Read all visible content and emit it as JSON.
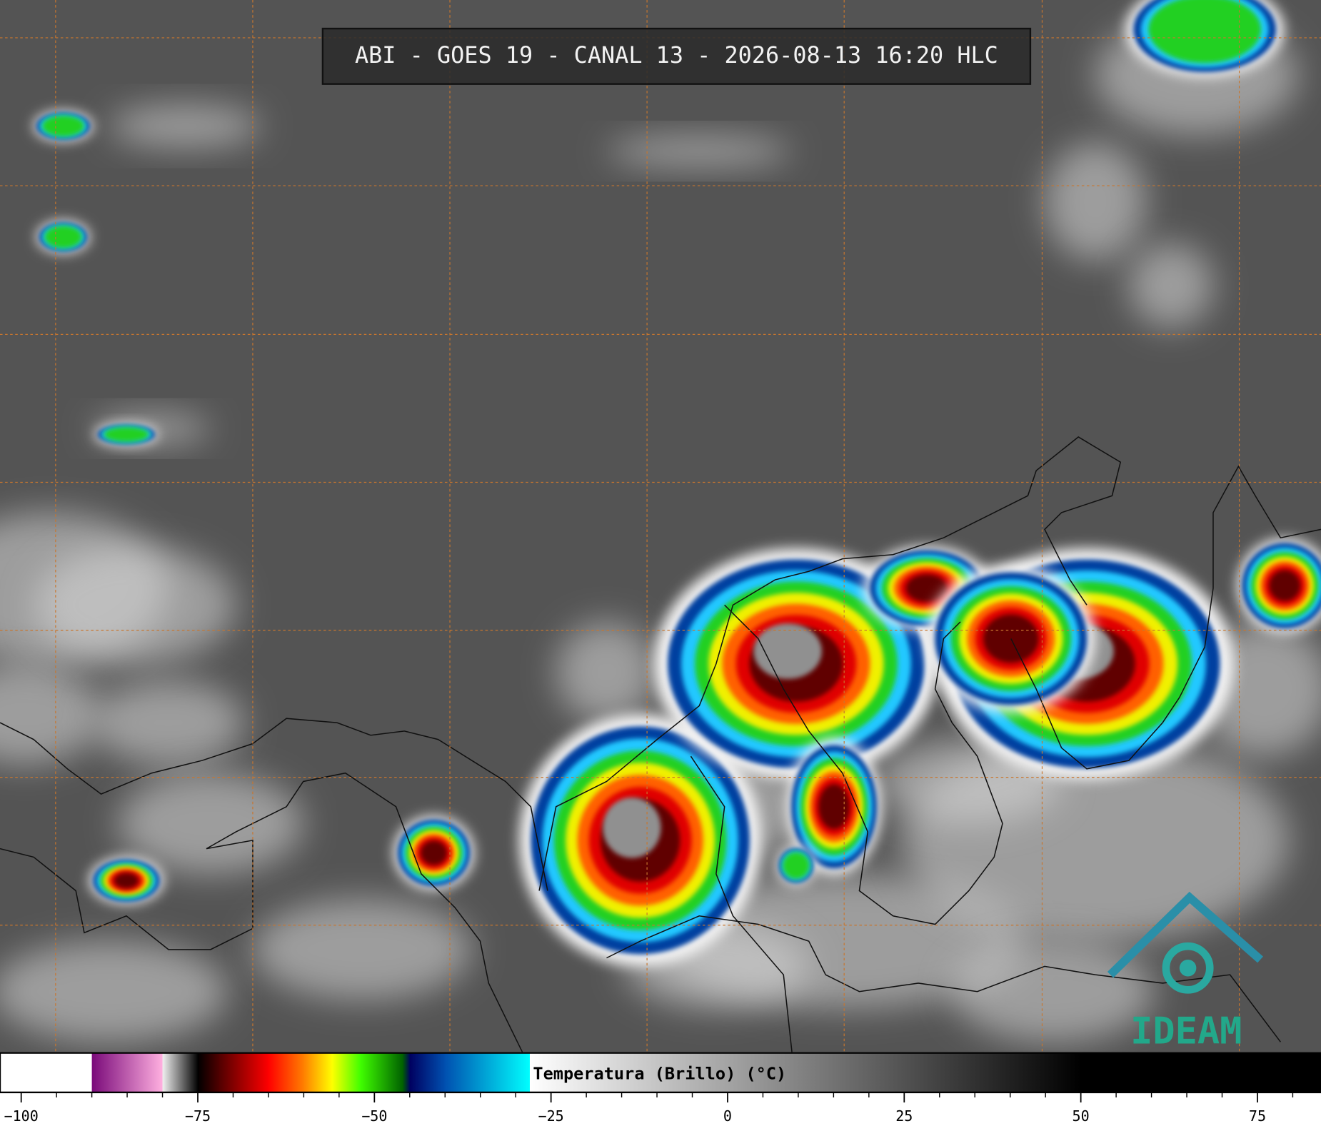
{
  "header": {
    "title": "ABI - GOES 19 - CANAL 13 - 2026-08-13 16:20 HLC"
  },
  "colorbar": {
    "label": "Temperatura (Brillo) (°C)",
    "xlim": [
      -103,
      84
    ],
    "ticks": [
      {
        "value": -100,
        "label": "−100"
      },
      {
        "value": -75,
        "label": "−75"
      },
      {
        "value": -50,
        "label": "−50"
      },
      {
        "value": -25,
        "label": "−25"
      },
      0,
      25,
      50,
      75
    ],
    "minor_ticks": [
      -95,
      -90,
      -85,
      -80,
      -70,
      -65,
      -60,
      -55,
      -45,
      -40,
      -35,
      -30,
      -20,
      -15,
      -10,
      -5,
      5,
      10,
      15,
      20,
      30,
      35,
      40,
      45,
      55,
      60,
      65,
      70,
      80
    ],
    "stops": [
      {
        "value": -103,
        "color": "#ffffff"
      },
      {
        "value": -90,
        "color": "#ffffff"
      },
      {
        "value": -90,
        "color": "#7a0a7a"
      },
      {
        "value": -80,
        "color": "#ffb0e0"
      },
      {
        "value": -80,
        "color": "#f0f0f0"
      },
      {
        "value": -75,
        "color": "#000000"
      },
      {
        "value": -72,
        "color": "#500000"
      },
      {
        "value": -65,
        "color": "#ff0000"
      },
      {
        "value": -60,
        "color": "#ff8000"
      },
      {
        "value": -56,
        "color": "#ffff00"
      },
      {
        "value": -52,
        "color": "#40ff00"
      },
      {
        "value": -46,
        "color": "#006000"
      },
      {
        "value": -45,
        "color": "#000060"
      },
      {
        "value": -40,
        "color": "#0050b0"
      },
      {
        "value": -28,
        "color": "#00ffff"
      },
      {
        "value": -28,
        "color": "#ffffff"
      },
      {
        "value": 50,
        "color": "#000000"
      },
      {
        "value": 84,
        "color": "#000000"
      }
    ]
  },
  "logo": {
    "text": "IDEAM"
  }
}
